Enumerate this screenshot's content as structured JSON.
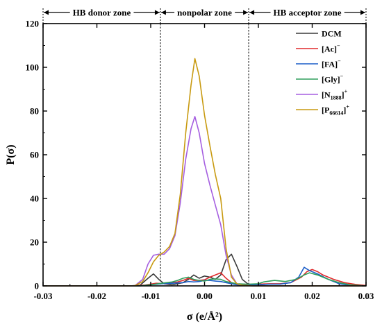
{
  "chart_data": {
    "type": "line",
    "xlabel": "σ (e/Å²)",
    "ylabel": "P(σ)",
    "xlim": [
      -0.03,
      0.03
    ],
    "ylim": [
      0,
      120
    ],
    "x_ticks": [
      "-0.03",
      "-0.02",
      "-0.01",
      "0.00",
      "0.01",
      "0.02",
      "0.03"
    ],
    "y_ticks": [
      "0",
      "20",
      "40",
      "60",
      "80",
      "100",
      "120"
    ],
    "grid": false,
    "legend_position": "top-right",
    "zones": [
      {
        "label": "HB  donor zone",
        "from": -0.03,
        "to": -0.0082
      },
      {
        "label": "nonpolar  zone",
        "from": -0.0082,
        "to": 0.0082
      },
      {
        "label": "HB  acceptor zone",
        "from": 0.0082,
        "to": 0.03
      }
    ],
    "zone_boundaries": [
      -0.0082,
      0.0082
    ],
    "series": [
      {
        "name": "DCM",
        "base": "DCM",
        "sub": "",
        "sup": "",
        "color": "#3a3a3a",
        "points": [
          [
            -0.03,
            0
          ],
          [
            -0.014,
            0
          ],
          [
            -0.012,
            0.3
          ],
          [
            -0.0105,
            3.5
          ],
          [
            -0.0095,
            5.5
          ],
          [
            -0.0085,
            3
          ],
          [
            -0.0075,
            1
          ],
          [
            -0.006,
            0.5
          ],
          [
            -0.004,
            1.5
          ],
          [
            -0.003,
            3
          ],
          [
            -0.002,
            5
          ],
          [
            -0.001,
            3.5
          ],
          [
            0,
            4.5
          ],
          [
            0.001,
            4
          ],
          [
            0.002,
            3
          ],
          [
            0.003,
            5
          ],
          [
            0.004,
            12
          ],
          [
            0.005,
            14.5
          ],
          [
            0.006,
            9
          ],
          [
            0.007,
            3
          ],
          [
            0.008,
            1
          ],
          [
            0.009,
            0.3
          ],
          [
            0.012,
            0
          ],
          [
            0.03,
            0
          ]
        ]
      },
      {
        "name": "[Ac]−",
        "base": "[Ac]",
        "sub": "",
        "sup": "−",
        "color": "#e0292b",
        "points": [
          [
            -0.03,
            0
          ],
          [
            -0.013,
            0
          ],
          [
            -0.011,
            0.4
          ],
          [
            -0.009,
            1.2
          ],
          [
            -0.007,
            1
          ],
          [
            -0.005,
            1.8
          ],
          [
            -0.004,
            2.5
          ],
          [
            -0.003,
            3.5
          ],
          [
            -0.002,
            2.5
          ],
          [
            -0.001,
            2.5
          ],
          [
            0,
            2.8
          ],
          [
            0.001,
            4
          ],
          [
            0.002,
            5
          ],
          [
            0.003,
            6
          ],
          [
            0.004,
            3.5
          ],
          [
            0.005,
            1.5
          ],
          [
            0.006,
            0.8
          ],
          [
            0.008,
            0.5
          ],
          [
            0.01,
            0.8
          ],
          [
            0.012,
            1
          ],
          [
            0.014,
            1
          ],
          [
            0.016,
            1.5
          ],
          [
            0.018,
            4
          ],
          [
            0.019,
            6.5
          ],
          [
            0.02,
            7.5
          ],
          [
            0.021,
            6.5
          ],
          [
            0.022,
            5
          ],
          [
            0.024,
            3
          ],
          [
            0.026,
            1.5
          ],
          [
            0.028,
            0.7
          ],
          [
            0.03,
            0.2
          ]
        ]
      },
      {
        "name": "[FA]−",
        "base": "[FA]",
        "sub": "",
        "sup": "−",
        "color": "#1c5ec8",
        "points": [
          [
            -0.03,
            0
          ],
          [
            -0.012,
            0
          ],
          [
            -0.01,
            0.5
          ],
          [
            -0.008,
            1
          ],
          [
            -0.006,
            1.2
          ],
          [
            -0.004,
            1.5
          ],
          [
            -0.003,
            2
          ],
          [
            -0.002,
            1.8
          ],
          [
            -0.001,
            2
          ],
          [
            0,
            2.5
          ],
          [
            0.001,
            2.5
          ],
          [
            0.002,
            2.2
          ],
          [
            0.003,
            2
          ],
          [
            0.004,
            1.5
          ],
          [
            0.005,
            1
          ],
          [
            0.006,
            0.5
          ],
          [
            0.008,
            0.3
          ],
          [
            0.01,
            0.5
          ],
          [
            0.012,
            0.8
          ],
          [
            0.014,
            0.8
          ],
          [
            0.016,
            1.5
          ],
          [
            0.0175,
            4
          ],
          [
            0.0185,
            8.5
          ],
          [
            0.0195,
            7
          ],
          [
            0.021,
            5.5
          ],
          [
            0.023,
            3
          ],
          [
            0.025,
            1
          ],
          [
            0.027,
            0.3
          ],
          [
            0.03,
            0
          ]
        ]
      },
      {
        "name": "[Gly]−",
        "base": "[Gly]",
        "sub": "",
        "sup": "−",
        "color": "#2f9e5b",
        "points": [
          [
            -0.03,
            0
          ],
          [
            -0.012,
            0
          ],
          [
            -0.01,
            0.5
          ],
          [
            -0.008,
            1.2
          ],
          [
            -0.006,
            1.8
          ],
          [
            -0.005,
            2.5
          ],
          [
            -0.004,
            3.5
          ],
          [
            -0.003,
            4
          ],
          [
            -0.002,
            3
          ],
          [
            -0.001,
            2.5
          ],
          [
            0,
            2.2
          ],
          [
            0.001,
            3
          ],
          [
            0.002,
            3.2
          ],
          [
            0.003,
            3
          ],
          [
            0.004,
            2
          ],
          [
            0.005,
            1.5
          ],
          [
            0.006,
            1
          ],
          [
            0.008,
            0.8
          ],
          [
            0.01,
            1
          ],
          [
            0.011,
            1.8
          ],
          [
            0.013,
            2.5
          ],
          [
            0.015,
            2
          ],
          [
            0.017,
            3
          ],
          [
            0.0185,
            5
          ],
          [
            0.0195,
            6
          ],
          [
            0.021,
            5
          ],
          [
            0.023,
            3
          ],
          [
            0.025,
            1.5
          ],
          [
            0.027,
            0.5
          ],
          [
            0.03,
            0
          ]
        ]
      },
      {
        "name": "[N1888]+",
        "base": "[N",
        "sub": "1888",
        "sup": "+",
        "color": "#a55ee0",
        "points": [
          [
            -0.03,
            0
          ],
          [
            -0.013,
            0
          ],
          [
            -0.0115,
            3
          ],
          [
            -0.0105,
            10
          ],
          [
            -0.0095,
            14
          ],
          [
            -0.0085,
            14.5
          ],
          [
            -0.0075,
            14.5
          ],
          [
            -0.0065,
            17
          ],
          [
            -0.0055,
            23
          ],
          [
            -0.0045,
            38
          ],
          [
            -0.0035,
            58
          ],
          [
            -0.0025,
            72
          ],
          [
            -0.0018,
            77.5
          ],
          [
            -0.001,
            70
          ],
          [
            0,
            56
          ],
          [
            0.001,
            46
          ],
          [
            0.002,
            37
          ],
          [
            0.003,
            28
          ],
          [
            0.004,
            14
          ],
          [
            0.005,
            5
          ],
          [
            0.006,
            1
          ],
          [
            0.007,
            0.3
          ],
          [
            0.009,
            0
          ],
          [
            0.03,
            0
          ]
        ]
      },
      {
        "name": "[P66614]+",
        "base": "[P",
        "sub": "66614",
        "sup": "+",
        "color": "#c89a10",
        "points": [
          [
            -0.03,
            0
          ],
          [
            -0.013,
            0
          ],
          [
            -0.0115,
            2
          ],
          [
            -0.0105,
            6
          ],
          [
            -0.0095,
            11
          ],
          [
            -0.0085,
            14
          ],
          [
            -0.0075,
            15.5
          ],
          [
            -0.0065,
            18
          ],
          [
            -0.0055,
            24
          ],
          [
            -0.0045,
            42
          ],
          [
            -0.0035,
            70
          ],
          [
            -0.0025,
            92
          ],
          [
            -0.0018,
            104
          ],
          [
            -0.001,
            96
          ],
          [
            0,
            78
          ],
          [
            0.001,
            64
          ],
          [
            0.002,
            51
          ],
          [
            0.003,
            40
          ],
          [
            0.004,
            17
          ],
          [
            0.005,
            4
          ],
          [
            0.006,
            1
          ],
          [
            0.007,
            0.3
          ],
          [
            0.009,
            0
          ],
          [
            0.03,
            0
          ]
        ]
      }
    ]
  }
}
